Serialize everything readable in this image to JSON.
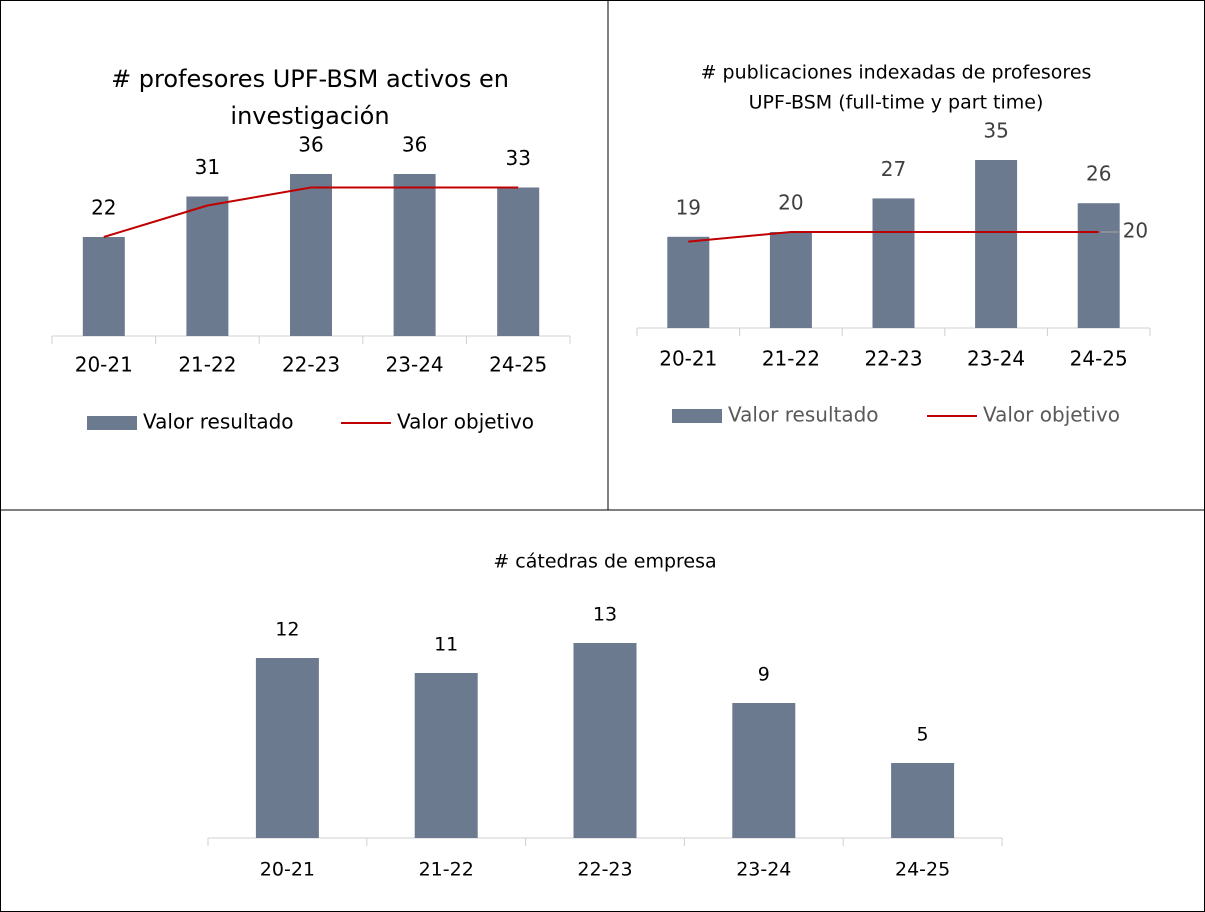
{
  "chart_data": [
    {
      "type": "bar",
      "title": [
        "# profesores UPF-BSM activos en",
        "investigación"
      ],
      "categories": [
        "20-21",
        "21-22",
        "22-23",
        "23-24",
        "24-25"
      ],
      "series": [
        {
          "name": "Valor resultado",
          "type": "bar",
          "color": "#6b7a8f",
          "values": [
            22,
            31,
            36,
            36,
            33
          ]
        },
        {
          "name": "Valor objetivo",
          "type": "line",
          "color": "#c00000",
          "values": [
            22,
            29,
            33,
            33,
            33
          ]
        }
      ],
      "ylim": [
        0,
        40
      ],
      "legend": "bottom"
    },
    {
      "type": "bar",
      "title": [
        "# publicaciones indexadas de profesores",
        "UPF-BSM (full-time y part time)"
      ],
      "categories": [
        "20-21",
        "21-22",
        "22-23",
        "23-24",
        "24-25"
      ],
      "series": [
        {
          "name": "Valor resultado",
          "type": "bar",
          "color": "#6b7a8f",
          "values": [
            19,
            20,
            27,
            35,
            26
          ]
        },
        {
          "name": "Valor objetivo",
          "type": "line",
          "color": "#c00000",
          "values": [
            18,
            20,
            20,
            20,
            20
          ],
          "end_label": true
        }
      ],
      "ylim": [
        0,
        40
      ],
      "legend": "bottom"
    },
    {
      "type": "bar",
      "title": [
        "# cátedras de empresa"
      ],
      "categories": [
        "20-21",
        "21-22",
        "22-23",
        "23-24",
        "24-25"
      ],
      "series": [
        {
          "type": "bar",
          "color": "#6b7a8f",
          "values": [
            12,
            11,
            13,
            9,
            5
          ]
        }
      ],
      "ylim": [
        0,
        14
      ]
    }
  ]
}
